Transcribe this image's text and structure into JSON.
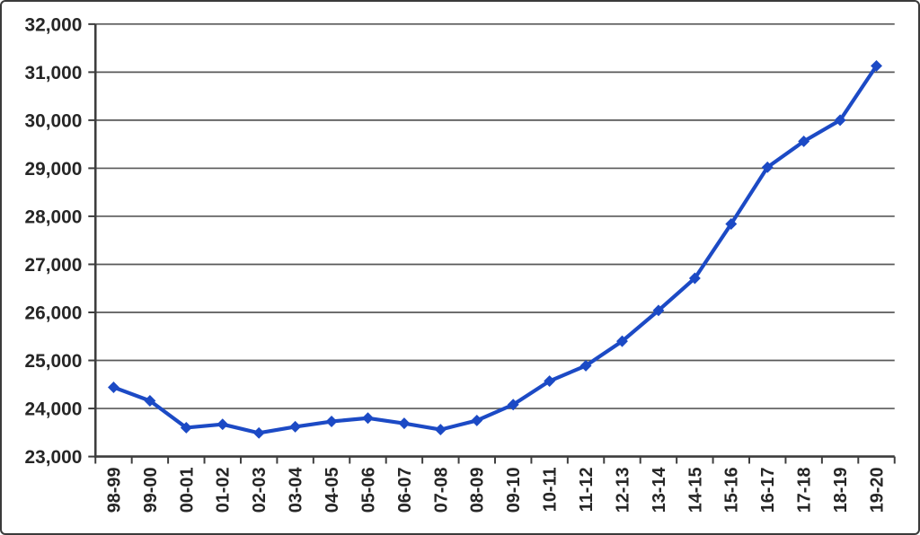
{
  "chart_data": {
    "type": "line",
    "categories": [
      "98-99",
      "99-00",
      "00-01",
      "01-02",
      "02-03",
      "03-04",
      "04-05",
      "05-06",
      "06-07",
      "07-08",
      "08-09",
      "09-10",
      "10-11",
      "11-12",
      "12-13",
      "13-14",
      "14-15",
      "15-16",
      "16-17",
      "17-18",
      "18-19",
      "19-20"
    ],
    "values": [
      24440,
      24160,
      23600,
      23670,
      23490,
      23620,
      23730,
      23800,
      23690,
      23560,
      23750,
      24080,
      24570,
      24890,
      25400,
      26040,
      26710,
      27840,
      29020,
      29560,
      30000,
      31130
    ],
    "ylim": [
      23000,
      32000
    ],
    "ytick_step": 1000,
    "y_tick_labels": [
      "23,000",
      "24,000",
      "25,000",
      "26,000",
      "27,000",
      "28,000",
      "29,000",
      "30,000",
      "31,000",
      "32,000"
    ],
    "x_label_rotation": "bottom-to-top",
    "grid": "horizontal",
    "legend_position": "none",
    "marker": "diamond",
    "colors": {
      "line": "#1c4ac5",
      "marker": "#1c4ac5",
      "gridline": "#595959",
      "axis": "#3d3d3d",
      "tick_label": "#262626",
      "background": "#ffffff",
      "frame_border": "#3a3a3a"
    }
  }
}
